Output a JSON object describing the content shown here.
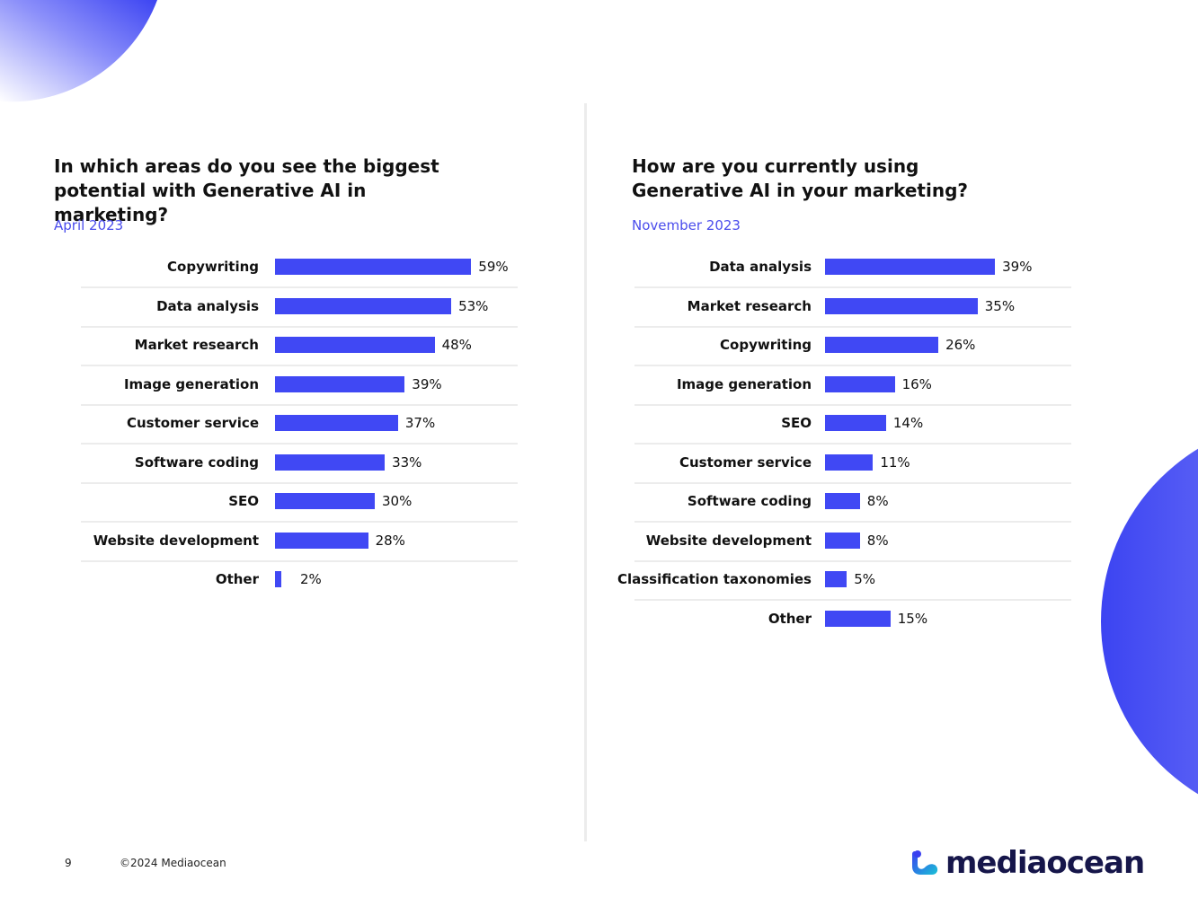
{
  "page": {
    "number": "9",
    "copyright": "©2024 Mediaocean",
    "brand": "mediaocean"
  },
  "colors": {
    "accent": "#4048f4",
    "subtitle": "#4a4cec",
    "text": "#111111",
    "gridline": "#ececec",
    "brand_dark": "#16164a"
  },
  "chart_data": [
    {
      "type": "bar",
      "orientation": "horizontal",
      "title": "In which areas do you see the biggest potential with Generative AI in marketing?",
      "title_lines": [
        "In which areas do you see the biggest",
        "potential with Generative AI in marketing?"
      ],
      "subtitle": "April 2023",
      "categories": [
        "Copywriting",
        "Data analysis",
        "Market research",
        "Image generation",
        "Customer service",
        "Software coding",
        "SEO",
        "Website development",
        "Other"
      ],
      "values": [
        59,
        53,
        48,
        39,
        37,
        33,
        30,
        28,
        2
      ],
      "value_labels": [
        "59%",
        "53%",
        "48%",
        "39%",
        "37%",
        "33%",
        "30%",
        "28%",
        "2%"
      ],
      "unit": "%",
      "xlim": [
        0,
        100
      ],
      "grid": false,
      "legend": "none"
    },
    {
      "type": "bar",
      "orientation": "horizontal",
      "title": "How are you currently using Generative AI in your marketing?",
      "title_lines": [
        "How are you currently using",
        "Generative AI in your marketing?"
      ],
      "subtitle": "November 2023",
      "categories": [
        "Data analysis",
        "Market research",
        "Copywriting",
        "Image generation",
        "SEO",
        "Customer service",
        "Software coding",
        "Website development",
        "Classification taxonomies",
        "Other"
      ],
      "values": [
        39,
        35,
        26,
        16,
        14,
        11,
        8,
        8,
        5,
        15
      ],
      "value_labels": [
        "39%",
        "35%",
        "26%",
        "16%",
        "14%",
        "11%",
        "8%",
        "8%",
        "5%",
        "15%"
      ],
      "unit": "%",
      "xlim": [
        0,
        100
      ],
      "grid": false,
      "legend": "none"
    }
  ]
}
